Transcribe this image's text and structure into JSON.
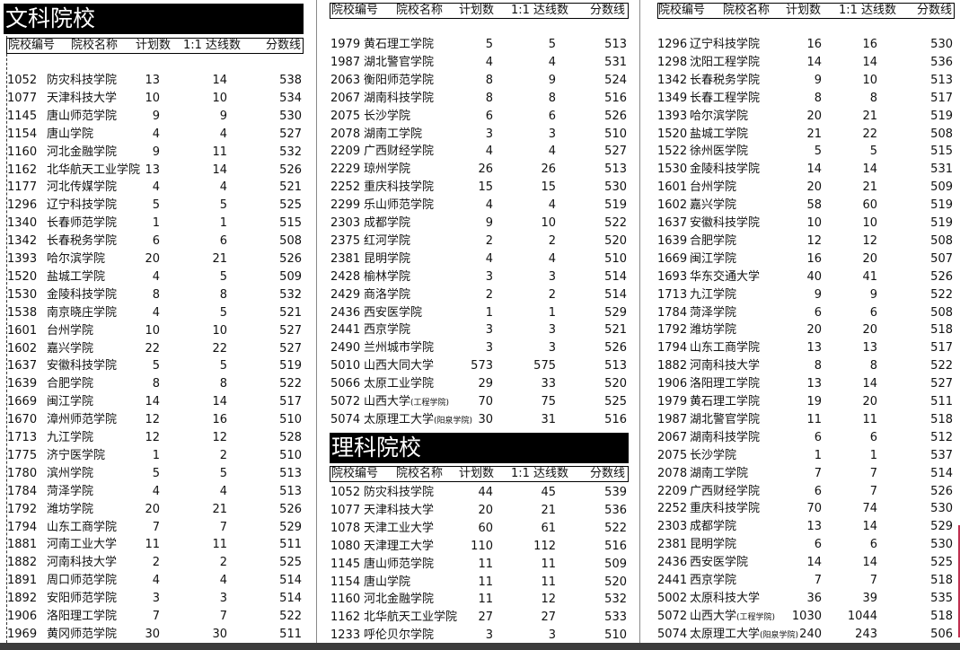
{
  "headers": {
    "code": "院校编号",
    "name": "院校名称",
    "plan": "计划数",
    "reached": "1:1 达线数",
    "score": "分数线"
  },
  "sections": {
    "wenke": {
      "title": "文科院校"
    },
    "like": {
      "title": "理科院校"
    }
  },
  "tables": {
    "wenke_a": [
      [
        "1052",
        "防灾科技学院",
        "13",
        "14",
        "538"
      ],
      [
        "1077",
        "天津科技大学",
        "10",
        "10",
        "534"
      ],
      [
        "1145",
        "唐山师范学院",
        "9",
        "9",
        "530"
      ],
      [
        "1154",
        "唐山学院",
        "4",
        "4",
        "527"
      ],
      [
        "1160",
        "河北金融学院",
        "9",
        "11",
        "532"
      ],
      [
        "1162",
        "北华航天工业学院",
        "13",
        "14",
        "526"
      ],
      [
        "1177",
        "河北传媒学院",
        "4",
        "4",
        "521"
      ],
      [
        "1296",
        "辽宁科技学院",
        "5",
        "5",
        "525"
      ],
      [
        "1340",
        "长春师范学院",
        "1",
        "1",
        "515"
      ],
      [
        "1342",
        "长春税务学院",
        "6",
        "6",
        "508"
      ],
      [
        "1393",
        "哈尔滨学院",
        "20",
        "21",
        "526"
      ],
      [
        "1520",
        "盐城工学院",
        "4",
        "5",
        "509"
      ],
      [
        "1530",
        "金陵科技学院",
        "8",
        "8",
        "532"
      ],
      [
        "1538",
        "南京晓庄学院",
        "4",
        "5",
        "521"
      ],
      [
        "1601",
        "台州学院",
        "10",
        "10",
        "527"
      ],
      [
        "1602",
        "嘉兴学院",
        "22",
        "22",
        "527"
      ],
      [
        "1637",
        "安徽科技学院",
        "5",
        "5",
        "519"
      ],
      [
        "1639",
        "合肥学院",
        "8",
        "8",
        "522"
      ],
      [
        "1669",
        "闽江学院",
        "14",
        "14",
        "517"
      ],
      [
        "1670",
        "漳州师范学院",
        "12",
        "16",
        "510"
      ],
      [
        "1713",
        "九江学院",
        "12",
        "12",
        "528"
      ],
      [
        "1775",
        "济宁医学院",
        "1",
        "2",
        "510"
      ],
      [
        "1780",
        "滨州学院",
        "5",
        "5",
        "513"
      ],
      [
        "1784",
        "菏泽学院",
        "4",
        "4",
        "513"
      ],
      [
        "1792",
        "潍坊学院",
        "20",
        "21",
        "526"
      ],
      [
        "1794",
        "山东工商学院",
        "7",
        "7",
        "529"
      ],
      [
        "1881",
        "河南工业大学",
        "11",
        "11",
        "511"
      ],
      [
        "1882",
        "河南科技大学",
        "2",
        "2",
        "525"
      ],
      [
        "1891",
        "周口师范学院",
        "4",
        "4",
        "514"
      ],
      [
        "1892",
        "安阳师范学院",
        "3",
        "3",
        "514"
      ],
      [
        "1906",
        "洛阳理工学院",
        "7",
        "7",
        "522"
      ],
      [
        "1969",
        "黄冈师范学院",
        "30",
        "30",
        "511"
      ]
    ],
    "wenke_b": [
      [
        "1979",
        "黄石理工学院",
        "5",
        "5",
        "513"
      ],
      [
        "1987",
        "湖北警官学院",
        "4",
        "4",
        "531"
      ],
      [
        "2063",
        "衡阳师范学院",
        "8",
        "9",
        "524"
      ],
      [
        "2067",
        "湖南科技学院",
        "8",
        "8",
        "516"
      ],
      [
        "2075",
        "长沙学院",
        "6",
        "6",
        "526"
      ],
      [
        "2078",
        "湖南工学院",
        "3",
        "3",
        "510"
      ],
      [
        "2209",
        "广西财经学院",
        "4",
        "4",
        "527"
      ],
      [
        "2229",
        "琼州学院",
        "26",
        "26",
        "513"
      ],
      [
        "2252",
        "重庆科技学院",
        "15",
        "15",
        "530"
      ],
      [
        "2299",
        "乐山师范学院",
        "4",
        "4",
        "519"
      ],
      [
        "2303",
        "成都学院",
        "9",
        "10",
        "522"
      ],
      [
        "2375",
        "红河学院",
        "2",
        "2",
        "520"
      ],
      [
        "2381",
        "昆明学院",
        "4",
        "4",
        "510"
      ],
      [
        "2428",
        "榆林学院",
        "3",
        "3",
        "514"
      ],
      [
        "2429",
        "商洛学院",
        "2",
        "2",
        "514"
      ],
      [
        "2436",
        "西安医学院",
        "1",
        "1",
        "529"
      ],
      [
        "2441",
        "西京学院",
        "3",
        "3",
        "521"
      ],
      [
        "2490",
        "兰州城市学院",
        "3",
        "3",
        "526"
      ],
      [
        "5010",
        "山西大同大学",
        "573",
        "575",
        "513"
      ],
      [
        "5066",
        "太原工业学院",
        "29",
        "33",
        "520"
      ],
      [
        "5072",
        "山西大学(工程学院)",
        "70",
        "75",
        "525"
      ],
      [
        "5074",
        "太原理工大学(阳泉学院)",
        "30",
        "31",
        "516"
      ]
    ],
    "like_a": [
      [
        "1052",
        "防灾科技学院",
        "44",
        "45",
        "539"
      ],
      [
        "1077",
        "天津科技大学",
        "20",
        "21",
        "536"
      ],
      [
        "1078",
        "天津工业大学",
        "60",
        "61",
        "522"
      ],
      [
        "1080",
        "天津理工大学",
        "110",
        "112",
        "516"
      ],
      [
        "1145",
        "唐山师范学院",
        "11",
        "11",
        "509"
      ],
      [
        "1154",
        "唐山学院",
        "11",
        "11",
        "520"
      ],
      [
        "1160",
        "河北金融学院",
        "11",
        "12",
        "532"
      ],
      [
        "1162",
        "北华航天工业学院",
        "27",
        "27",
        "533"
      ],
      [
        "1233",
        "呼伦贝尔学院",
        "3",
        "3",
        "510"
      ]
    ],
    "like_b": [
      [
        "1296",
        "辽宁科技学院",
        "16",
        "16",
        "530"
      ],
      [
        "1298",
        "沈阳工程学院",
        "14",
        "14",
        "536"
      ],
      [
        "1342",
        "长春税务学院",
        "9",
        "10",
        "513"
      ],
      [
        "1349",
        "长春工程学院",
        "8",
        "8",
        "517"
      ],
      [
        "1393",
        "哈尔滨学院",
        "20",
        "21",
        "519"
      ],
      [
        "1520",
        "盐城工学院",
        "21",
        "22",
        "508"
      ],
      [
        "1522",
        "徐州医学院",
        "5",
        "5",
        "515"
      ],
      [
        "1530",
        "金陵科技学院",
        "14",
        "14",
        "531"
      ],
      [
        "1601",
        "台州学院",
        "20",
        "21",
        "509"
      ],
      [
        "1602",
        "嘉兴学院",
        "58",
        "60",
        "519"
      ],
      [
        "1637",
        "安徽科技学院",
        "10",
        "10",
        "519"
      ],
      [
        "1639",
        "合肥学院",
        "12",
        "12",
        "508"
      ],
      [
        "1669",
        "闽江学院",
        "16",
        "20",
        "507"
      ],
      [
        "1693",
        "华东交通大学",
        "40",
        "41",
        "526"
      ],
      [
        "1713",
        "九江学院",
        "9",
        "9",
        "522"
      ],
      [
        "1784",
        "菏泽学院",
        "6",
        "6",
        "508"
      ],
      [
        "1792",
        "潍坊学院",
        "20",
        "20",
        "518"
      ],
      [
        "1794",
        "山东工商学院",
        "13",
        "13",
        "517"
      ],
      [
        "1882",
        "河南科技大学",
        "8",
        "8",
        "522"
      ],
      [
        "1906",
        "洛阳理工学院",
        "13",
        "14",
        "527"
      ],
      [
        "1979",
        "黄石理工学院",
        "19",
        "20",
        "511"
      ],
      [
        "1987",
        "湖北警官学院",
        "11",
        "11",
        "518"
      ],
      [
        "2067",
        "湖南科技学院",
        "6",
        "6",
        "512"
      ],
      [
        "2075",
        "长沙学院",
        "1",
        "1",
        "537"
      ],
      [
        "2078",
        "湖南工学院",
        "7",
        "7",
        "514"
      ],
      [
        "2209",
        "广西财经学院",
        "6",
        "7",
        "526"
      ],
      [
        "2252",
        "重庆科技学院",
        "70",
        "74",
        "530"
      ],
      [
        "2303",
        "成都学院",
        "13",
        "14",
        "529"
      ],
      [
        "2381",
        "昆明学院",
        "6",
        "6",
        "530"
      ],
      [
        "2436",
        "西安医学院",
        "14",
        "14",
        "525"
      ],
      [
        "2441",
        "西京学院",
        "7",
        "7",
        "518"
      ],
      [
        "5002",
        "太原科技大学",
        "36",
        "39",
        "535"
      ],
      [
        "5072",
        "山西大学(工程学院)",
        "1030",
        "1044",
        "518"
      ],
      [
        "5074",
        "太原理工大学(阳泉学院)",
        "240",
        "243",
        "506"
      ]
    ]
  }
}
